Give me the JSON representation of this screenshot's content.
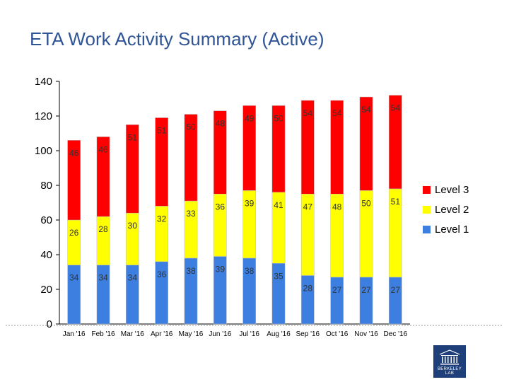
{
  "title": "ETA Work Activity Summary (Active)",
  "logo_text": "BERKELEY LAB",
  "chart_data": {
    "type": "stacked-bar",
    "categories": [
      "Jan '16",
      "Feb '16",
      "Mar '16",
      "Apr '16",
      "May '16",
      "Jun '16",
      "Jul '16",
      "Aug '16",
      "Sep '16",
      "Oct '16",
      "Nov '16",
      "Dec '16"
    ],
    "series": [
      {
        "name": "Level 1",
        "color": "#3D7FE0",
        "values": [
          34,
          34,
          34,
          36,
          38,
          39,
          38,
          35,
          28,
          27,
          27,
          27
        ]
      },
      {
        "name": "Level 2",
        "color": "#FFFF00",
        "values": [
          26,
          28,
          30,
          32,
          33,
          36,
          39,
          41,
          47,
          48,
          50,
          51
        ]
      },
      {
        "name": "Level 3",
        "color": "#FF0000",
        "values": [
          46,
          46,
          51,
          51,
          50,
          48,
          49,
          50,
          54,
          54,
          54,
          54
        ]
      }
    ],
    "legend_order": [
      "Level 3",
      "Level 2",
      "Level 1"
    ],
    "yticks": [
      0,
      20,
      40,
      60,
      80,
      100,
      120,
      140
    ],
    "ylim": [
      0,
      140
    ],
    "grid": false,
    "legend_position": "right"
  }
}
